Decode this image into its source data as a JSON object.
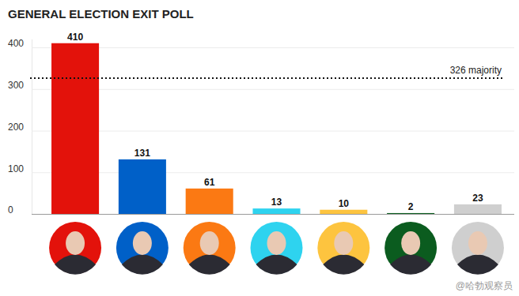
{
  "chart_data": {
    "type": "bar",
    "title": "GENERAL ELECTION EXIT POLL",
    "categories": [
      null,
      null,
      null,
      null,
      null,
      null,
      null
    ],
    "values": [
      410,
      131,
      61,
      13,
      10,
      2,
      23
    ],
    "colors": [
      "#e3120b",
      "#0060c8",
      "#fb7913",
      "#2ed3ef",
      "#fdc43f",
      "#0b5c1f",
      "#cfcfcf"
    ],
    "ylim": [
      0,
      420
    ],
    "yticks": [
      0,
      100,
      200,
      300,
      400
    ],
    "grid": true,
    "data_labels": true,
    "tick_labels": "y",
    "annotations": [
      {
        "text": "326 majority",
        "y": 326
      },
      {
        "text": "@哈勃观察员"
      }
    ]
  }
}
